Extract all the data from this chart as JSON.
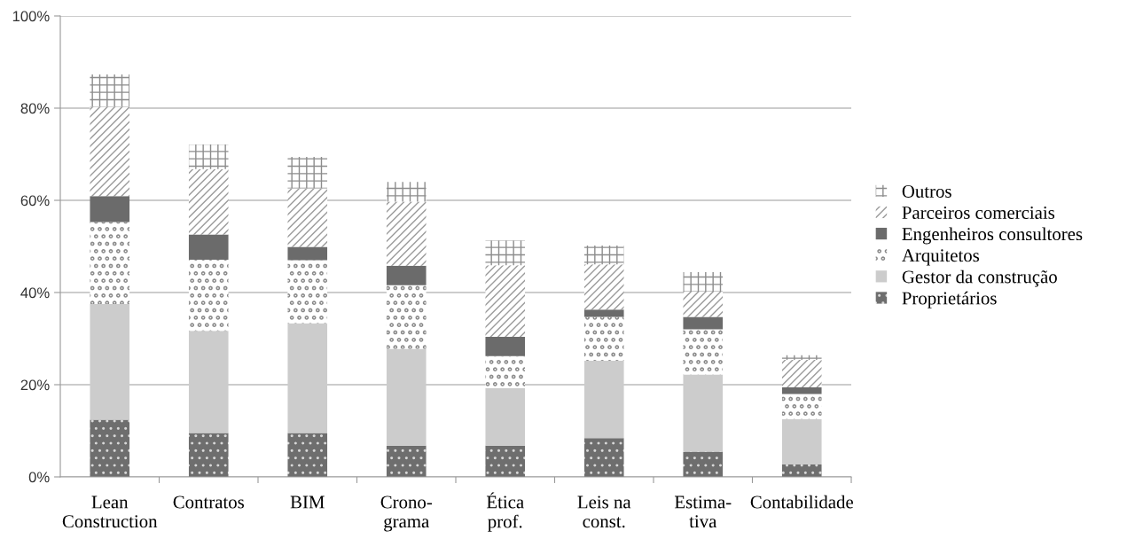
{
  "chart_data": {
    "type": "bar",
    "stacked": true,
    "categories": [
      "Lean\nConstruction",
      "Contratos",
      "BIM",
      "Crono-\ngrama",
      "Ética\nprof.",
      "Leis na\nconst.",
      "Estima-\ntiva",
      "Contabilidade"
    ],
    "series": [
      {
        "name": "Proprietários",
        "color": "#6e6e6e",
        "values": [
          12.4,
          9.5,
          9.5,
          6.8,
          6.8,
          8.4,
          5.5,
          2.7
        ]
      },
      {
        "name": "Gestor da construção",
        "color": "#cccccc",
        "values": [
          25.1,
          22.2,
          23.8,
          21.0,
          12.5,
          16.8,
          16.7,
          9.8
        ]
      },
      {
        "name": "Arquitetos",
        "color": "#8a8a8a",
        "values": [
          17.8,
          15.4,
          13.7,
          13.8,
          6.9,
          9.5,
          9.8,
          5.5
        ]
      },
      {
        "name": "Engenheiros consultores",
        "color": "#6b6b6b",
        "values": [
          5.6,
          5.5,
          2.9,
          4.2,
          4.2,
          1.6,
          2.7,
          1.4
        ]
      },
      {
        "name": "Parceiros comerciais",
        "color": "#9a9a9a",
        "values": [
          19.4,
          14.2,
          12.7,
          13.9,
          15.5,
          9.8,
          5.5,
          6.0
        ]
      },
      {
        "name": "Outros",
        "color": "#8c8c8c",
        "values": [
          7.0,
          5.3,
          6.8,
          4.3,
          5.4,
          4.1,
          4.2,
          1.0
        ]
      }
    ],
    "ylim": [
      0,
      100
    ],
    "yticks": [
      {
        "value": 0,
        "label": "0%"
      },
      {
        "value": 20,
        "label": "20%"
      },
      {
        "value": 40,
        "label": "40%"
      },
      {
        "value": 60,
        "label": "60%"
      },
      {
        "value": 80,
        "label": "80%"
      },
      {
        "value": 100,
        "label": "100%"
      }
    ],
    "grid": "y",
    "legend": "right"
  }
}
